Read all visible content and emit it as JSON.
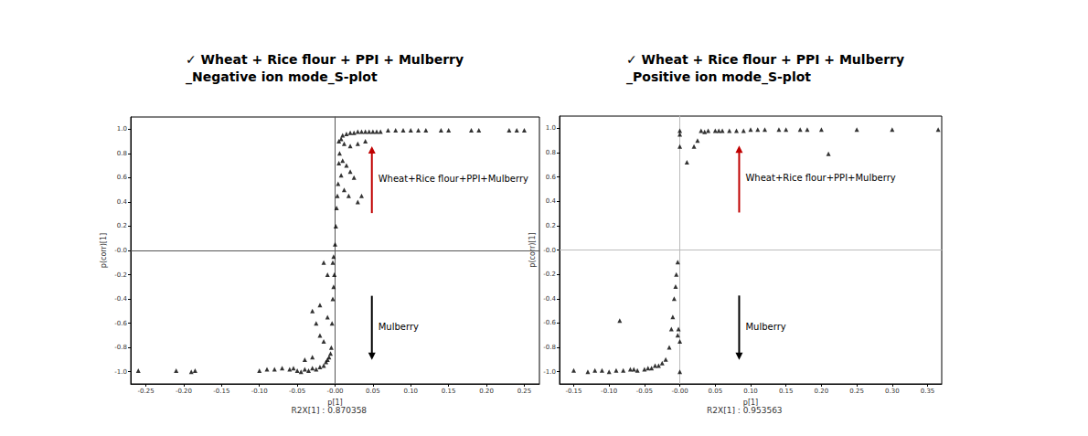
{
  "chart_data": [
    {
      "type": "scatter",
      "title": "✓ Wheat + Rice flour + PPI + Mulberry\n_Negative ion mode_S-plot",
      "x_label": "p[1]",
      "y_label": "p(corr)[1]",
      "footnote": "R2X[1] : 0.870358",
      "annotations": [
        "Wheat+Rice flour+PPI+Mulberry",
        "Mulberry"
      ],
      "color": "#000000",
      "marker": "triangle",
      "grid": false,
      "xlim": [
        -0.27,
        0.27
      ],
      "xticks": [
        {
          "value": -0.25,
          "label": "-0.25"
        },
        {
          "value": -0.2,
          "label": "-0.20"
        },
        {
          "value": -0.15,
          "label": "-0.15"
        },
        {
          "value": -0.1,
          "label": "-0.10"
        },
        {
          "value": -0.05,
          "label": "-0.05"
        },
        {
          "value": 0,
          "label": "-0.00"
        },
        {
          "value": 0.05,
          "label": "0.05"
        },
        {
          "value": 0.1,
          "label": "0.10"
        },
        {
          "value": 0.15,
          "label": "0.15"
        },
        {
          "value": 0.2,
          "label": "0.20"
        },
        {
          "value": 0.25,
          "label": "0.25"
        }
      ],
      "ylim": [
        -1.1,
        1.1
      ],
      "yticks": [
        {
          "value": -1,
          "label": "-1.0"
        },
        {
          "value": -0.8,
          "label": "-0.8"
        },
        {
          "value": -0.6,
          "label": "-0.6"
        },
        {
          "value": -0.4,
          "label": "-0.4"
        },
        {
          "value": -0.2,
          "label": "-0.2"
        },
        {
          "value": 0,
          "label": "-0.0"
        },
        {
          "value": 0.2,
          "label": "0.2"
        },
        {
          "value": 0.4,
          "label": "0.4"
        },
        {
          "value": 0.6,
          "label": "0.6"
        },
        {
          "value": 0.8,
          "label": "0.8"
        },
        {
          "value": 1,
          "label": "1.0"
        }
      ],
      "x": [
        0.25,
        0.24,
        0.23,
        0.19,
        0.18,
        0.15,
        0.14,
        0.12,
        0.11,
        0.1,
        0.09,
        0.08,
        0.07,
        0.06,
        0.055,
        0.05,
        0.045,
        0.04,
        0.035,
        0.03,
        0.025,
        0.02,
        0.015,
        0.01,
        0.008,
        0.005,
        0.012,
        0.02,
        0.03,
        0.04,
        0.006,
        0.01,
        0.015,
        0.02,
        0.025,
        0.004,
        0.003,
        0.002,
        0.001,
        0.0,
        0.005,
        0.008,
        0.012,
        0.018,
        0.03,
        0.035,
        -0.26,
        -0.21,
        -0.19,
        -0.185,
        -0.1,
        -0.09,
        -0.08,
        -0.07,
        -0.06,
        -0.055,
        -0.05,
        -0.045,
        -0.04,
        -0.035,
        -0.03,
        -0.025,
        -0.02,
        -0.015,
        -0.012,
        -0.01,
        -0.008,
        -0.006,
        -0.005,
        -0.015,
        -0.02,
        -0.025,
        -0.03,
        -0.02,
        -0.01,
        -0.004,
        -0.003,
        -0.002,
        -0.001,
        -0.01,
        -0.015,
        -0.003,
        -0.04,
        -0.03,
        -0.002
      ],
      "values": [
        0.99,
        0.99,
        0.99,
        0.99,
        0.99,
        0.99,
        0.99,
        0.99,
        0.99,
        0.99,
        0.99,
        0.99,
        0.99,
        0.98,
        0.98,
        0.98,
        0.98,
        0.98,
        0.98,
        0.98,
        0.97,
        0.97,
        0.96,
        0.95,
        0.92,
        0.9,
        0.88,
        0.86,
        0.88,
        0.9,
        0.8,
        0.74,
        0.7,
        0.65,
        0.6,
        0.55,
        0.45,
        0.35,
        0.2,
        0.05,
        0.72,
        0.62,
        0.5,
        0.45,
        0.4,
        0.45,
        -0.99,
        -0.99,
        -1.0,
        -0.99,
        -0.99,
        -0.98,
        -0.98,
        -0.97,
        -0.98,
        -0.97,
        -0.99,
        -1.0,
        -0.98,
        -0.99,
        -0.97,
        -0.98,
        -0.96,
        -0.95,
        -0.92,
        -0.9,
        -0.88,
        -0.85,
        -0.8,
        -0.75,
        -0.7,
        -0.6,
        -0.5,
        -0.45,
        -0.55,
        -0.6,
        -0.4,
        -0.3,
        -0.2,
        -0.2,
        -0.1,
        -0.1,
        -0.9,
        -0.88,
        -0.05
      ]
    },
    {
      "type": "scatter",
      "title": "✓ Wheat + Rice flour + PPI + Mulberry\n_Positive ion mode_S-plot",
      "x_label": "p[1]",
      "y_label": "p(corr)[1]",
      "footnote": "R2X[1] : 0.953563",
      "annotations": [
        "Wheat+Rice flour+PPI+Mulberry",
        "Mulberry"
      ],
      "color": "#000000",
      "marker": "triangle",
      "grid": false,
      "xlim": [
        -0.17,
        0.37
      ],
      "xticks": [
        {
          "value": -0.15,
          "label": "-0.15"
        },
        {
          "value": -0.1,
          "label": "-0.10"
        },
        {
          "value": -0.05,
          "label": "-0.05"
        },
        {
          "value": 0,
          "label": "-0.00"
        },
        {
          "value": 0.05,
          "label": "0.05"
        },
        {
          "value": 0.1,
          "label": "0.10"
        },
        {
          "value": 0.15,
          "label": "0.15"
        },
        {
          "value": 0.2,
          "label": "0.20"
        },
        {
          "value": 0.25,
          "label": "0.25"
        },
        {
          "value": 0.3,
          "label": "0.30"
        },
        {
          "value": 0.35,
          "label": "0.35"
        }
      ],
      "ylim": [
        -1.1,
        1.1
      ],
      "yticks": [
        {
          "value": -1,
          "label": "-1.0"
        },
        {
          "value": -0.8,
          "label": "-0.8"
        },
        {
          "value": -0.6,
          "label": "-0.6"
        },
        {
          "value": -0.4,
          "label": "-0.4"
        },
        {
          "value": -0.2,
          "label": "-0.2"
        },
        {
          "value": 0,
          "label": "-0.0"
        },
        {
          "value": 0.2,
          "label": "0.2"
        },
        {
          "value": 0.4,
          "label": "0.4"
        },
        {
          "value": 0.6,
          "label": "0.6"
        },
        {
          "value": 0.8,
          "label": "0.8"
        },
        {
          "value": 1,
          "label": "1.0"
        }
      ],
      "x": [
        0.365,
        0.3,
        0.25,
        0.21,
        0.2,
        0.18,
        0.17,
        0.15,
        0.14,
        0.12,
        0.11,
        0.1,
        0.09,
        0.08,
        0.07,
        0.06,
        0.055,
        0.05,
        0.04,
        0.035,
        0.03,
        0.025,
        0.02,
        0.01,
        0.0,
        0.0,
        0.0,
        -0.15,
        -0.13,
        -0.12,
        -0.11,
        -0.1,
        -0.09,
        -0.085,
        -0.08,
        -0.07,
        -0.065,
        -0.06,
        -0.05,
        -0.045,
        -0.04,
        -0.035,
        -0.03,
        -0.025,
        -0.02,
        -0.015,
        -0.012,
        -0.01,
        -0.008,
        -0.006,
        -0.005,
        -0.003,
        -0.002,
        0.0,
        0.0,
        -0.003
      ],
      "values": [
        0.99,
        0.99,
        0.99,
        0.79,
        0.99,
        0.99,
        0.99,
        0.99,
        0.99,
        0.99,
        0.99,
        0.99,
        0.98,
        0.98,
        0.98,
        0.98,
        0.98,
        0.98,
        0.98,
        0.97,
        0.98,
        0.9,
        0.85,
        0.72,
        0.85,
        0.95,
        0.98,
        -0.99,
        -1.0,
        -0.99,
        -0.99,
        -1.0,
        -0.99,
        -0.58,
        -0.99,
        -0.98,
        -0.98,
        -0.99,
        -0.98,
        -0.97,
        -0.97,
        -0.95,
        -0.95,
        -0.93,
        -0.9,
        -0.8,
        -0.65,
        -0.55,
        -0.4,
        -0.3,
        -0.2,
        -0.1,
        -0.65,
        -0.75,
        -1.0,
        -0.7
      ]
    }
  ]
}
